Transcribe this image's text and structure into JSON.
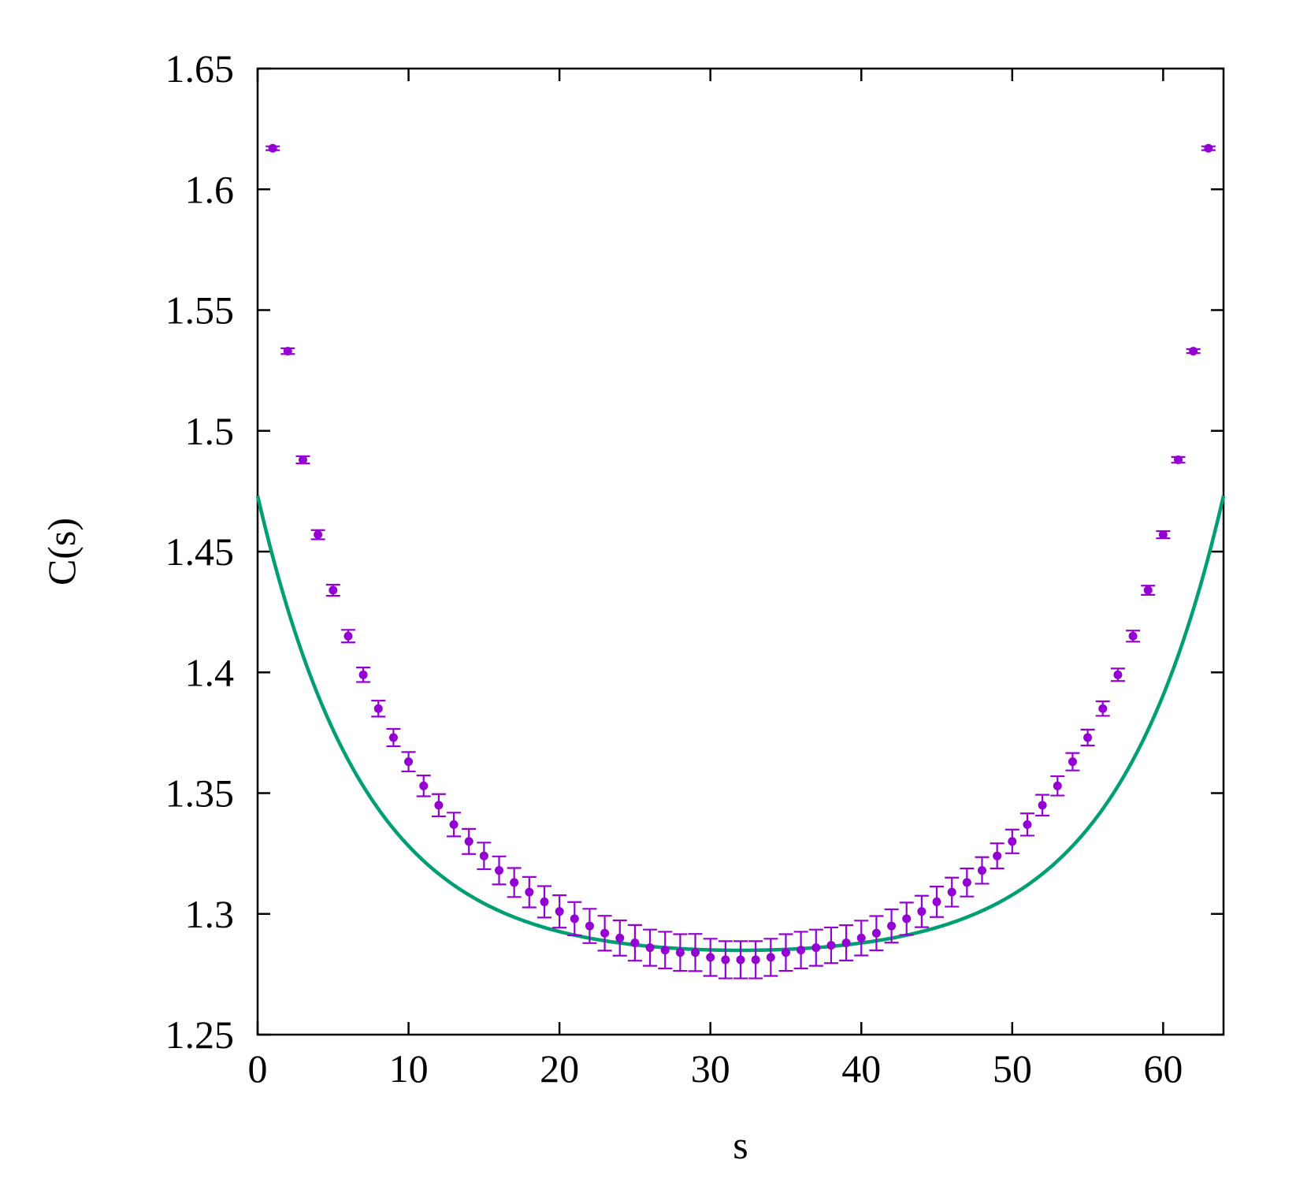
{
  "chart_data": {
    "type": "scatter",
    "title": "",
    "xlabel": "s",
    "ylabel": "C(s)",
    "xlim": [
      0,
      64
    ],
    "ylim": [
      1.25,
      1.65
    ],
    "xticks": [
      0,
      10,
      20,
      30,
      40,
      50,
      60
    ],
    "xtick_labels": [
      "0",
      "10",
      "20",
      "30",
      "40",
      "50",
      "60"
    ],
    "yticks": [
      1.25,
      1.3,
      1.35,
      1.4,
      1.45,
      1.5,
      1.55,
      1.6,
      1.65
    ],
    "ytick_labels": [
      "1.25",
      "1.3",
      "1.35",
      "1.4",
      "1.45",
      "1.5",
      "1.55",
      "1.6",
      "1.65"
    ],
    "grid": false,
    "legend": "none",
    "colors": {
      "points": "#9400D3",
      "fit": "#009E73",
      "axes": "#000000"
    },
    "series": [
      {
        "kind": "points_with_errorbars",
        "x": [
          1,
          2,
          3,
          4,
          5,
          6,
          7,
          8,
          9,
          10,
          11,
          12,
          13,
          14,
          15,
          16,
          17,
          18,
          19,
          20,
          21,
          22,
          23,
          24,
          25,
          26,
          27,
          28,
          29,
          30,
          31,
          32,
          33,
          34,
          35,
          36,
          37,
          38,
          39,
          40,
          41,
          42,
          43,
          44,
          45,
          46,
          47,
          48,
          49,
          50,
          51,
          52,
          53,
          54,
          55,
          56,
          57,
          58,
          59,
          60,
          61,
          62,
          63
        ],
        "y": [
          1.617,
          1.533,
          1.488,
          1.457,
          1.434,
          1.415,
          1.399,
          1.385,
          1.373,
          1.363,
          1.353,
          1.345,
          1.337,
          1.33,
          1.324,
          1.318,
          1.313,
          1.309,
          1.305,
          1.301,
          1.298,
          1.295,
          1.292,
          1.29,
          1.288,
          1.286,
          1.285,
          1.284,
          1.284,
          1.282,
          1.281,
          1.281,
          1.281,
          1.282,
          1.284,
          1.285,
          1.286,
          1.287,
          1.288,
          1.29,
          1.292,
          1.295,
          1.298,
          1.301,
          1.305,
          1.309,
          1.313,
          1.318,
          1.324,
          1.33,
          1.337,
          1.345,
          1.353,
          1.363,
          1.373,
          1.385,
          1.399,
          1.415,
          1.434,
          1.457,
          1.488,
          1.533,
          1.617
        ],
        "yerr": [
          0.0008,
          0.0012,
          0.0015,
          0.0019,
          0.0023,
          0.0026,
          0.003,
          0.0033,
          0.0036,
          0.004,
          0.0043,
          0.0046,
          0.0049,
          0.0052,
          0.0055,
          0.0058,
          0.006,
          0.0063,
          0.0065,
          0.0067,
          0.0069,
          0.0071,
          0.0072,
          0.0073,
          0.0074,
          0.0075,
          0.0076,
          0.0076,
          0.0077,
          0.0077,
          0.0077,
          0.0077,
          0.0077,
          0.0077,
          0.0076,
          0.0076,
          0.0075,
          0.0074,
          0.0073,
          0.0072,
          0.0071,
          0.0069,
          0.0067,
          0.0065,
          0.0063,
          0.006,
          0.0058,
          0.0055,
          0.0052,
          0.0049,
          0.0046,
          0.0043,
          0.004,
          0.0036,
          0.0033,
          0.003,
          0.0026,
          0.0023,
          0.0019,
          0.0015,
          0.0012,
          0.0008,
          0.0008
        ]
      },
      {
        "kind": "fit_curve",
        "function": "A*cosh(B*(s - 32)) + C",
        "params": {
          "A": 0.004364,
          "B": 0.14,
          "C": 1.28055
        }
      }
    ]
  }
}
